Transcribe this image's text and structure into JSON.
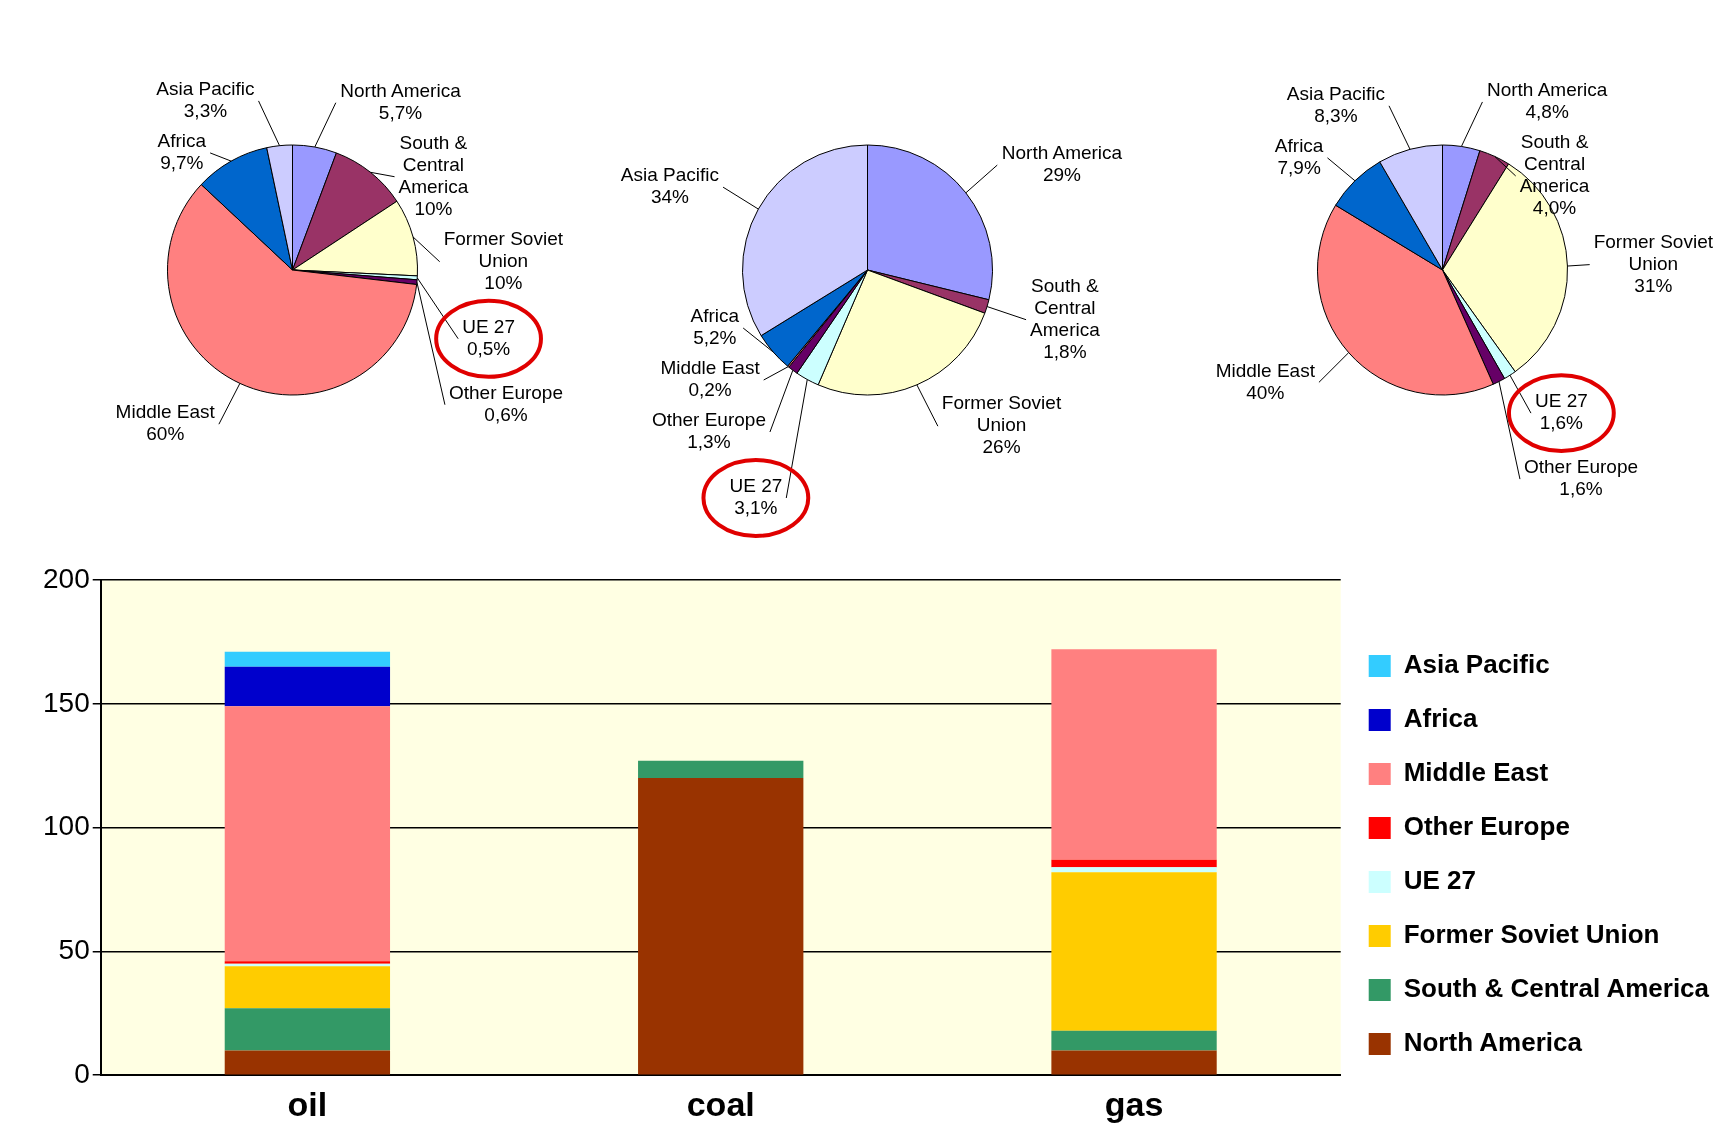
{
  "chart_data": [
    {
      "type": "pie",
      "categories": [
        "North America",
        "South & Central America",
        "Former Soviet Union",
        "UE 27",
        "Other Europe",
        "Middle East",
        "Africa",
        "Asia Pacific"
      ],
      "values": [
        5.7,
        10,
        10,
        0.5,
        0.6,
        60,
        9.7,
        3.3
      ],
      "value_labels": [
        "5,7%",
        "10%",
        "10%",
        "0,5%",
        "0,6%",
        "60%",
        "9,7%",
        "3,3%"
      ],
      "colors": [
        "#9999ff",
        "#993366",
        "#ffffcc",
        "#ccffff",
        "#660066",
        "#ff8080",
        "#0066cc",
        "#ccccff"
      ]
    },
    {
      "type": "pie",
      "categories": [
        "North America",
        "South & Central America",
        "Former Soviet Union",
        "UE 27",
        "Other Europe",
        "Middle East",
        "Africa",
        "Asia Pacific"
      ],
      "values": [
        29,
        1.8,
        26,
        3.1,
        1.3,
        0.2,
        5.2,
        34
      ],
      "value_labels": [
        "29%",
        "1,8%",
        "26%",
        "3,1%",
        "1,3%",
        "0,2%",
        "5,2%",
        "34%"
      ],
      "colors": [
        "#9999ff",
        "#993366",
        "#ffffcc",
        "#ccffff",
        "#660066",
        "#ff8080",
        "#0066cc",
        "#ccccff"
      ]
    },
    {
      "type": "pie",
      "categories": [
        "North America",
        "South & Central America",
        "Former Soviet Union",
        "UE 27",
        "Other Europe",
        "Middle East",
        "Africa",
        "Asia Pacific"
      ],
      "values": [
        4.8,
        4.0,
        31,
        1.6,
        1.6,
        40,
        7.9,
        8.3
      ],
      "value_labels": [
        "4,8%",
        "4,0%",
        "31%",
        "1,6%",
        "1,6%",
        "40%",
        "7,9%",
        "8,3%"
      ],
      "colors": [
        "#9999ff",
        "#993366",
        "#ffffcc",
        "#ccffff",
        "#660066",
        "#ff8080",
        "#0066cc",
        "#ccccff"
      ]
    },
    {
      "type": "bar",
      "stacked": true,
      "categories": [
        "oil",
        "coal",
        "gas"
      ],
      "ylim": [
        0,
        200
      ],
      "yticks": [
        0,
        50,
        100,
        150,
        200
      ],
      "grid": "y",
      "legend": "right",
      "series": [
        {
          "name": "North America",
          "color": "#993300",
          "values": [
            10,
            120,
            10
          ]
        },
        {
          "name": "South & Central America",
          "color": "#339966",
          "values": [
            17,
            7,
            8
          ]
        },
        {
          "name": "Former Soviet Union",
          "color": "#ffcc00",
          "values": [
            17,
            null,
            64
          ]
        },
        {
          "name": "UE 27",
          "color": "#ccffff",
          "values": [
            1,
            null,
            2
          ]
        },
        {
          "name": "Other Europe",
          "color": "#ff0000",
          "values": [
            1,
            null,
            3
          ]
        },
        {
          "name": "Middle East",
          "color": "#ff8080",
          "values": [
            103,
            null,
            85
          ]
        },
        {
          "name": "Africa",
          "color": "#0000cc",
          "values": [
            16,
            null,
            null
          ]
        },
        {
          "name": "Asia Pacific",
          "color": "#33ccff",
          "values": [
            6,
            null,
            null
          ]
        }
      ]
    }
  ]
}
